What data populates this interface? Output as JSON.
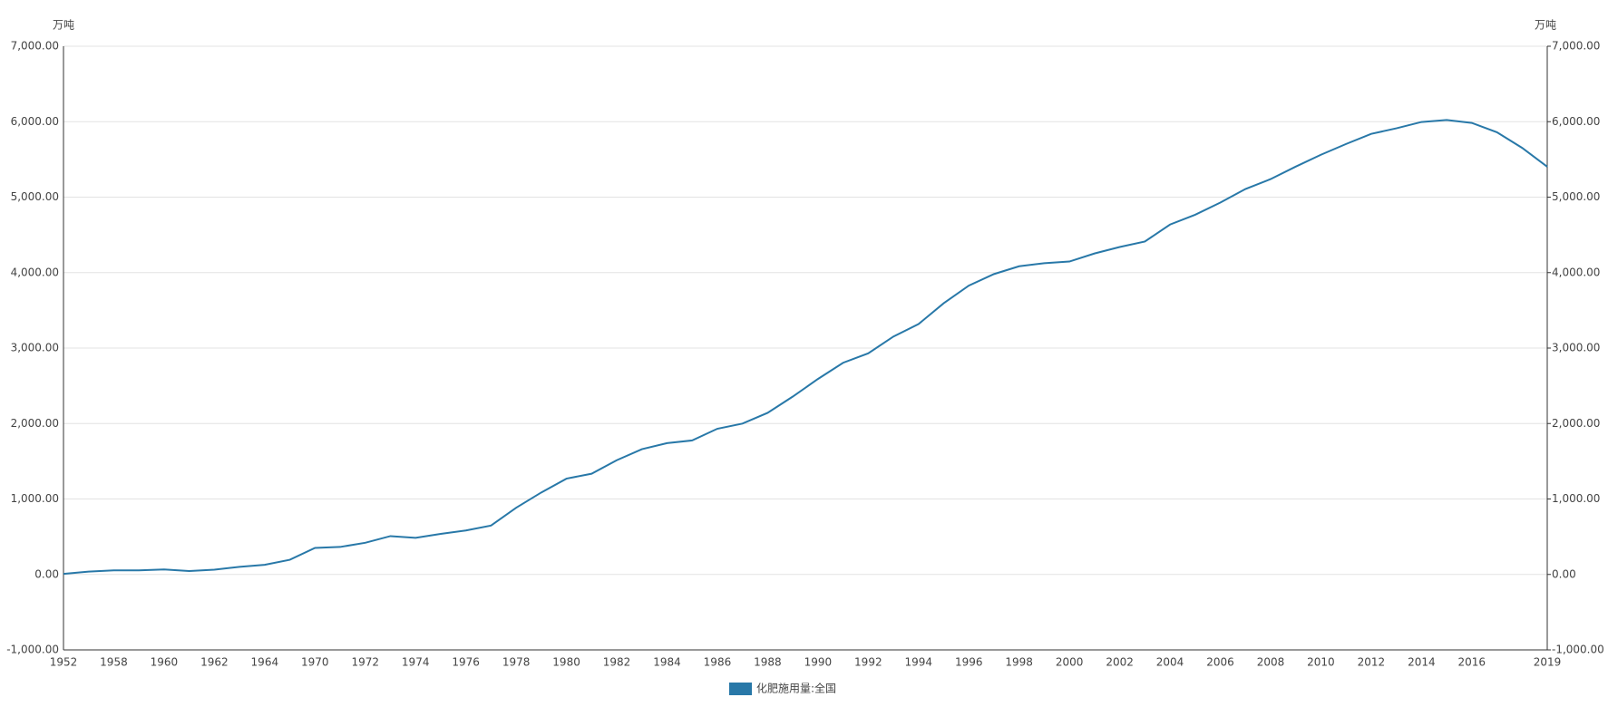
{
  "chart_data": {
    "type": "line",
    "y_label": "万吨",
    "y2_label": "万吨",
    "categories": [
      "1952",
      null,
      "1958",
      null,
      "1960",
      null,
      "1962",
      null,
      "1964",
      null,
      "1970",
      null,
      "1972",
      null,
      "1974",
      null,
      "1976",
      null,
      "1978",
      null,
      "1980",
      null,
      "1982",
      null,
      "1984",
      null,
      "1986",
      null,
      "1988",
      null,
      "1990",
      null,
      "1992",
      null,
      "1994",
      null,
      "1996",
      null,
      "1998",
      null,
      "2000",
      null,
      "2002",
      null,
      "2004",
      null,
      "2006",
      null,
      "2008",
      null,
      "2010",
      null,
      "2012",
      null,
      "2014",
      null,
      "2016",
      null,
      null,
      "2019"
    ],
    "series": [
      {
        "name": "化肥施用量:全国",
        "color": "#2878a8",
        "values": [
          7.8,
          37.3,
          54.6,
          53.7,
          66.2,
          44.6,
          63.0,
          101.2,
          128,
          194.2,
          351.2,
          364.2,
          419.5,
          508,
          485,
          536.9,
          582.8,
          648,
          884,
          1086.3,
          1269.4,
          1334.9,
          1513.4,
          1659.8,
          1739.8,
          1775.8,
          1930.6,
          1999.3,
          2141.5,
          2357.1,
          2590.3,
          2805.1,
          2930.2,
          3151.9,
          3317.9,
          3593.7,
          3827.9,
          3980.7,
          4083.7,
          4124.3,
          4146.4,
          4253.8,
          4339.4,
          4411.6,
          4636.6,
          4766.2,
          4927.7,
          5107.8,
          5239.0,
          5404.4,
          5561.7,
          5704.2,
          5838.8,
          5911.9,
          5995.9,
          6022.6,
          5984.1,
          5859.4,
          5653.4,
          5403.6
        ]
      }
    ],
    "ylim": [
      -1000,
      7000
    ],
    "yticks": [
      {
        "value": -1000,
        "label": "-1,000.00"
      },
      {
        "value": 0,
        "label": "0.00"
      },
      {
        "value": 1000,
        "label": "1,000.00"
      },
      {
        "value": 2000,
        "label": "2,000.00"
      },
      {
        "value": 3000,
        "label": "3,000.00"
      },
      {
        "value": 4000,
        "label": "4,000.00"
      },
      {
        "value": 5000,
        "label": "5,000.00"
      },
      {
        "value": 6000,
        "label": "6,000.00"
      },
      {
        "value": 7000,
        "label": "7,000.00"
      }
    ],
    "y2lim": [
      -1000,
      7000
    ],
    "y2ticks": [
      {
        "value": -1000,
        "label": "-1,000.00"
      },
      {
        "value": 0,
        "label": "0.00"
      },
      {
        "value": 1000,
        "label": "1,000.00"
      },
      {
        "value": 2000,
        "label": "2,000.00"
      },
      {
        "value": 3000,
        "label": "3,000.00"
      },
      {
        "value": 4000,
        "label": "4,000.00"
      },
      {
        "value": 5000,
        "label": "5,000.00"
      },
      {
        "value": 6000,
        "label": "6,000.00"
      },
      {
        "value": 7000,
        "label": "7,000.00"
      }
    ],
    "grid": true,
    "legend": "bottom"
  }
}
